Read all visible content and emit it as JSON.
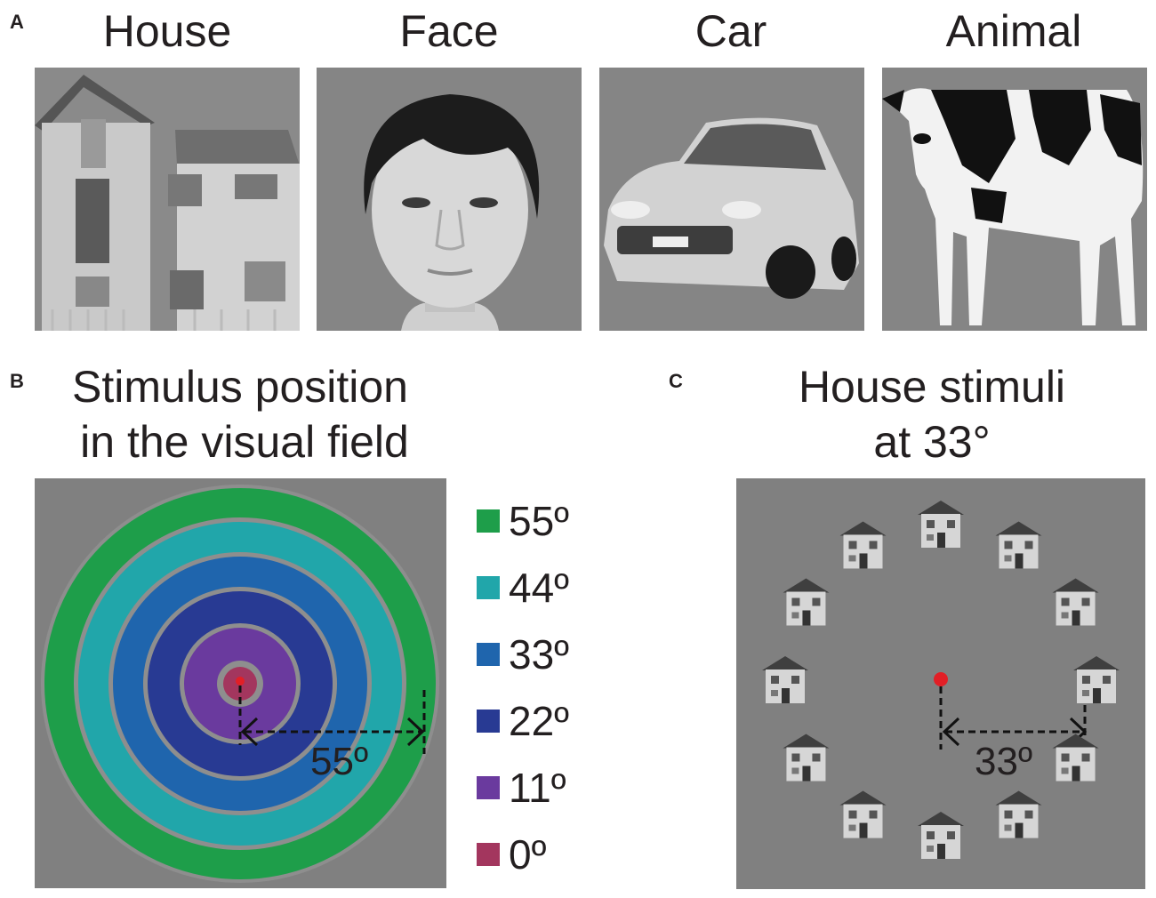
{
  "panel_a": {
    "letter": "A",
    "categories": [
      {
        "label": "House",
        "image": "house-photo"
      },
      {
        "label": "Face",
        "image": "face-photo"
      },
      {
        "label": "Car",
        "image": "car-photo"
      },
      {
        "label": "Animal",
        "image": "cow-photo"
      }
    ]
  },
  "panel_b": {
    "letter": "B",
    "title_line1": "Stimulus position",
    "title_line2": "in the visual field",
    "annotation": "55º",
    "legend": [
      {
        "label": "55º",
        "color": "#1e9e4a"
      },
      {
        "label": "44º",
        "color": "#21a6aa"
      },
      {
        "label": "33º",
        "color": "#1f65ad"
      },
      {
        "label": "22º",
        "color": "#283a93"
      },
      {
        "label": "11º",
        "color": "#6a3a9e"
      },
      {
        "label": "0º",
        "color": "#a3365e"
      }
    ]
  },
  "panel_c": {
    "letter": "C",
    "title_line1": "House stimuli",
    "title_line2": "at 33°",
    "annotation": "33º",
    "house_count": 12
  },
  "colors": {
    "stimulus_background": "#808080",
    "ring_gap": "#8e8e8e",
    "fixation": "#e21f26"
  }
}
